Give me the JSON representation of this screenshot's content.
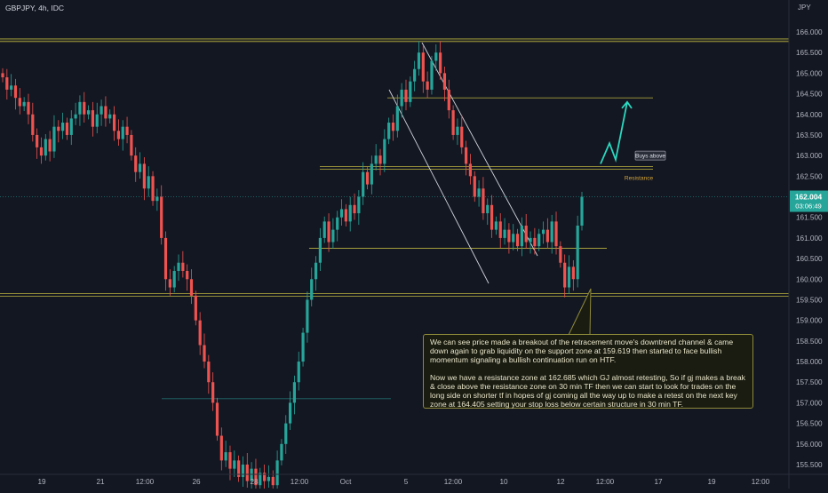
{
  "header": {
    "symbol": "GBPJPY, 4h, IDC",
    "currency": "JPY"
  },
  "price_tag": {
    "value": "162.004",
    "countdown": "03:06:49"
  },
  "annotations": {
    "buys_above": "Buys above",
    "resistance": "Resistance",
    "note_p1": "We can see price made a breakout of the retracement move's downtrend channel & came down again to grab liquidity on the support zone at 159.619 then started to face bullish momentum signaling a bullish continuation run on HTF.",
    "note_p2": "Now we have a resistance zone at 162.685 which GJ almost retesting, So if gj makes a break & close above the resistance zone on 30 min TF then we can start to look for trades on the long side on shorter tf in hopes of gj coming all the way up to make a retest on the next key zone at 164.405 setting your stop loss below certain structure in 30 min TF."
  },
  "colors": {
    "up": "#26a69a",
    "down": "#ef5350",
    "background": "#131722",
    "zone": "#b5ad3f",
    "accent": "#2196f3"
  },
  "chart_data": {
    "type": "candlestick",
    "ylim": [
      155.3,
      166.45
    ],
    "y_ticks": [
      155.5,
      156.0,
      156.5,
      157.0,
      157.5,
      158.0,
      158.5,
      159.0,
      159.5,
      160.0,
      160.5,
      161.0,
      161.5,
      162.0,
      162.5,
      163.0,
      163.5,
      164.0,
      164.5,
      165.0,
      165.5,
      166.0
    ],
    "x_labels": [
      "19",
      "21",
      "12:00",
      "26",
      "28",
      "12:00",
      "Oct",
      "5",
      "12:00",
      "10",
      "12",
      "12:00",
      "17",
      "19",
      "12:00"
    ],
    "levels": [
      {
        "value": 165.8,
        "kind": "zone"
      },
      {
        "value": 164.4,
        "kind": "zone"
      },
      {
        "value": 162.7,
        "kind": "zone"
      },
      {
        "value": 160.75,
        "kind": "zone"
      },
      {
        "value": 159.62,
        "kind": "zone"
      },
      {
        "value": 157.1,
        "kind": "line"
      }
    ],
    "candles_close": [
      164.9,
      164.6,
      164.7,
      164.4,
      164.2,
      164.3,
      164.0,
      163.5,
      163.2,
      163.0,
      163.4,
      163.1,
      163.7,
      163.6,
      163.8,
      163.5,
      163.9,
      164.0,
      164.3,
      164.0,
      164.1,
      163.7,
      164.0,
      164.2,
      163.9,
      164.0,
      163.6,
      163.4,
      163.7,
      163.5,
      163.0,
      162.6,
      162.8,
      162.2,
      162.5,
      161.9,
      162.0,
      161.0,
      160.0,
      159.8,
      160.2,
      160.4,
      160.2,
      160.0,
      159.6,
      159.0,
      158.4,
      158.0,
      157.5,
      157.0,
      156.2,
      155.6,
      155.8,
      155.4,
      155.6,
      155.2,
      155.5,
      155.1,
      155.4,
      155.0,
      155.3,
      155.1,
      155.2,
      155.0,
      155.6,
      156.0,
      156.5,
      157.0,
      157.5,
      158.0,
      158.7,
      159.5,
      160.0,
      160.4,
      161.0,
      161.4,
      160.9,
      161.2,
      161.5,
      161.7,
      161.4,
      161.8,
      161.6,
      162.0,
      162.6,
      162.3,
      162.8,
      163.0,
      162.8,
      163.4,
      163.8,
      163.6,
      164.2,
      164.6,
      164.3,
      164.8,
      165.1,
      165.5,
      164.8,
      164.6,
      165.3,
      165.5,
      165.0,
      164.6,
      164.1,
      163.5,
      163.7,
      163.2,
      162.8,
      162.5,
      162.0,
      162.2,
      161.6,
      161.8,
      161.2,
      161.4,
      161.0,
      161.2,
      160.9,
      161.1,
      160.8,
      161.3,
      160.9,
      161.0,
      160.8,
      161.1,
      161.2,
      160.9,
      161.4,
      160.8,
      160.4,
      159.8,
      160.3,
      160.0,
      161.3,
      162.0
    ],
    "projection_path": [
      [
        162.8,
        "a"
      ],
      [
        163.3,
        "b"
      ],
      [
        162.9,
        "c"
      ],
      [
        164.3,
        "d"
      ]
    ]
  }
}
